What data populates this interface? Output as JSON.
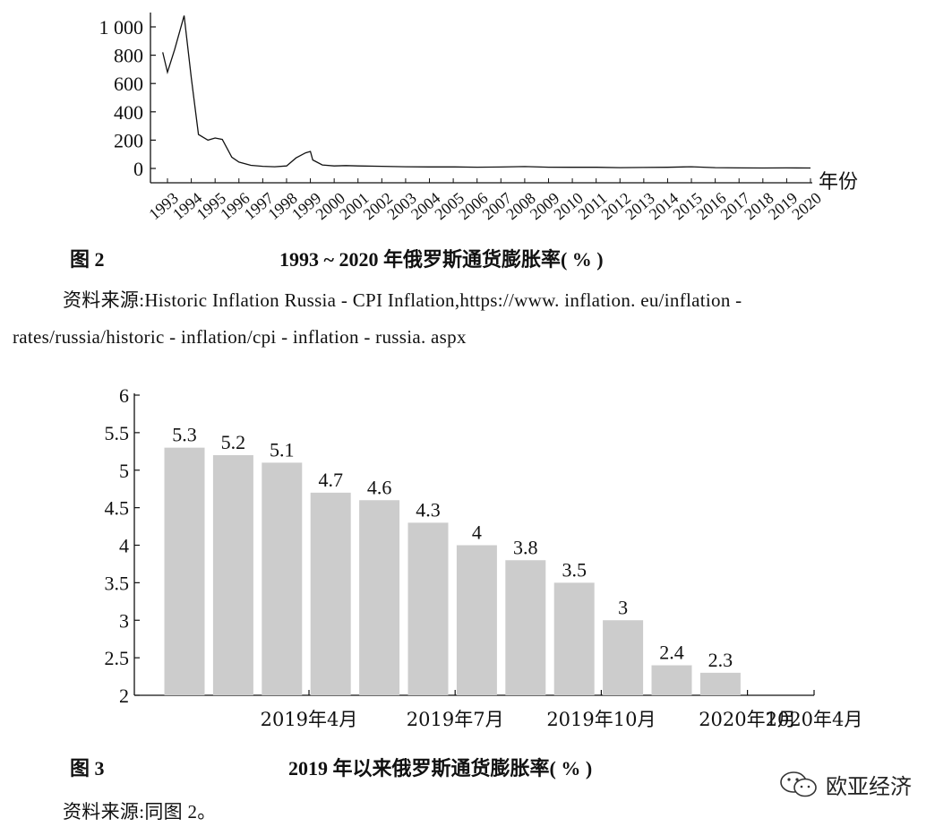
{
  "chart_data": [
    {
      "type": "line",
      "xlabel": "年份",
      "ylabel": "",
      "ylim": [
        0,
        1000
      ],
      "yticks": [
        "0",
        "200",
        "400",
        "600",
        "800",
        "1 000"
      ],
      "xticks": [
        "1993",
        "1994",
        "1995",
        "1996",
        "1997",
        "1998",
        "1999",
        "2000",
        "2001",
        "2002",
        "2003",
        "2004",
        "2005",
        "2006",
        "2007",
        "2008",
        "2009",
        "2010",
        "2011",
        "2012",
        "2013",
        "2014",
        "2015",
        "2016",
        "2017",
        "2018",
        "2019",
        "2020"
      ],
      "series": [
        {
          "x": [
            1992.8,
            1993.0,
            1993.3,
            1993.7,
            1994.0,
            1994.3,
            1994.7,
            1995.0,
            1995.3,
            1995.7,
            1996.0,
            1996.5,
            1997.0,
            1997.5,
            1998.0,
            1998.4,
            1998.8,
            1999.0,
            1999.1,
            1999.5,
            2000.0,
            2000.5,
            2001.0,
            2002.0,
            2003.0,
            2004.0,
            2005.0,
            2006.0,
            2007.0,
            2008.0,
            2009.0,
            2010.0,
            2011.0,
            2012.0,
            2013.0,
            2014.0,
            2015.0,
            2016.0,
            2017.0,
            2018.0,
            2019.0,
            2020.0
          ],
          "y": [
            820,
            680,
            840,
            1080,
            640,
            240,
            200,
            215,
            205,
            80,
            45,
            22,
            15,
            12,
            18,
            75,
            110,
            120,
            60,
            25,
            18,
            20,
            18,
            15,
            12,
            11,
            11,
            9,
            10,
            13,
            9,
            8,
            8,
            6,
            7,
            8,
            12,
            6,
            4,
            3,
            4,
            3
          ]
        }
      ]
    },
    {
      "type": "bar",
      "ylim": [
        2,
        6
      ],
      "yticks": [
        "2",
        "2.5",
        "3",
        "3.5",
        "4",
        "4.5",
        "5",
        "5.5",
        "6"
      ],
      "categories": [
        "2019-01",
        "2019-02",
        "2019-03",
        "2019-04",
        "2019-05",
        "2019-06",
        "2019-07",
        "2019-08",
        "2019-09",
        "2019-10",
        "2019-11",
        "2019-12"
      ],
      "values": [
        5.3,
        5.2,
        5.1,
        4.7,
        4.6,
        4.3,
        4,
        3.8,
        3.5,
        3,
        2.4,
        2.3
      ],
      "value_labels": [
        "5.3",
        "5.2",
        "5.1",
        "4.7",
        "4.6",
        "4.3",
        "4",
        "3.8",
        "3.5",
        "3",
        "2.4",
        "2.3"
      ],
      "xticks": [
        "2019年4月",
        "2019年7月",
        "2019年10月",
        "2020年1月",
        "2020年4月"
      ],
      "bar_color": "#cccccc"
    }
  ],
  "figure2": {
    "number": "图 2",
    "title": "1993 ~ 2020 年俄罗斯通货膨胀率( % )",
    "source_line1": "资料来源:Historic Inflation Russia - CPI Inflation,https://www. inflation. eu/inflation -",
    "source_line2": "rates/russia/historic - inflation/cpi - inflation - russia. aspx"
  },
  "figure3": {
    "number": "图 3",
    "title": "2019 年以来俄罗斯通货膨胀率( % )",
    "source": "资料来源:同图 2。"
  },
  "watermark": {
    "text": "欧亚经济",
    "icon": "wechat-icon"
  }
}
